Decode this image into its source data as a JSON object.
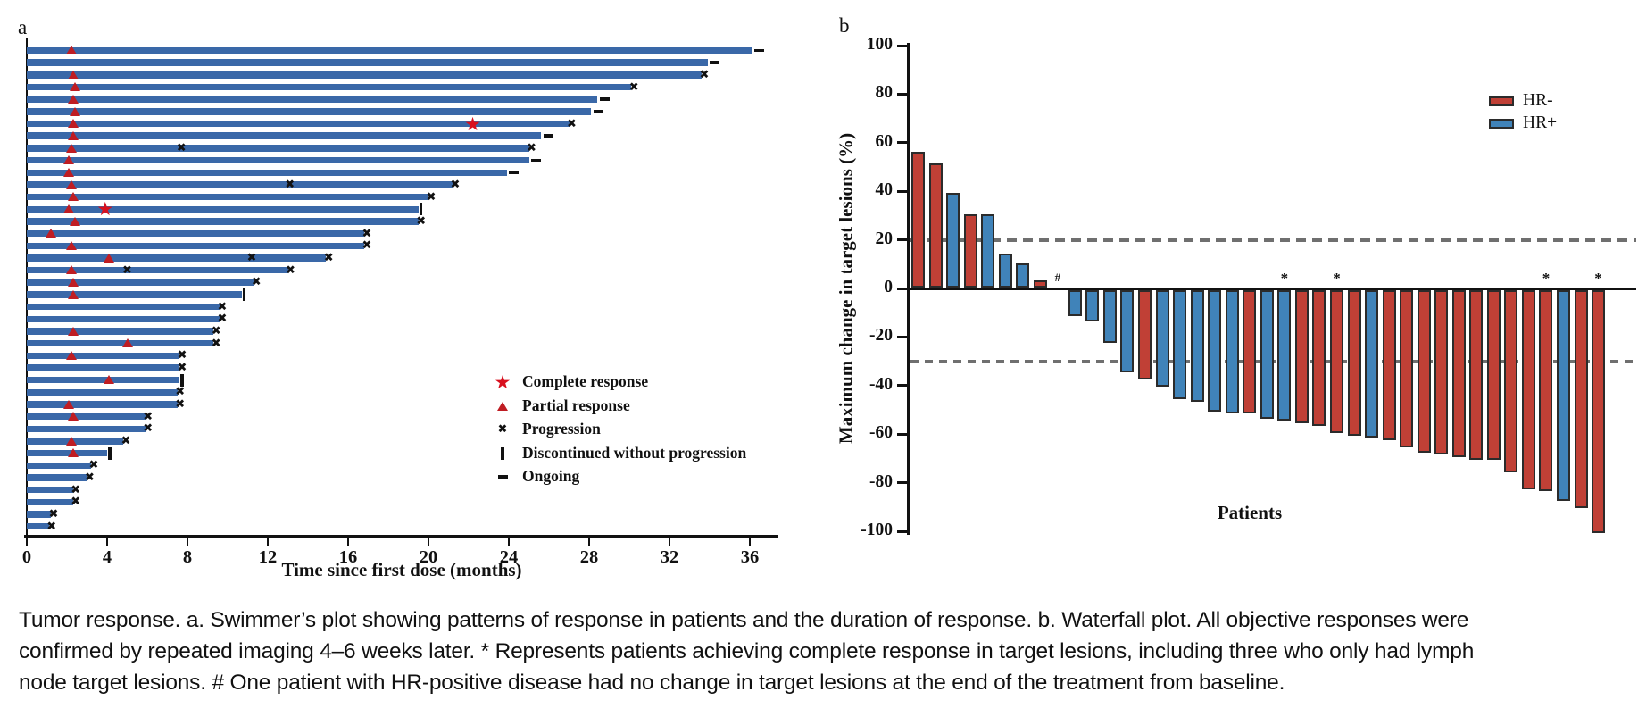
{
  "figure": {
    "panel_a_letter": "a",
    "panel_b_letter": "b"
  },
  "colors": {
    "swimmer_bar": "#3a68a8",
    "partial_response_triangle": "#bf1d23",
    "complete_response_star": "#d8101e",
    "progression_x": "#111111",
    "waterfall_hr_neg": "#c04036",
    "waterfall_hr_pos": "#4083b9",
    "waterfall_bar_border": "#2b2b2b",
    "reference_dash_gray": "#6f6f6f"
  },
  "caption": {
    "lines": [
      "Tumor response. a. Swimmer’s plot showing patterns of response in patients and the duration of response. b. Waterfall plot. All objective responses were",
      "confirmed by repeated imaging 4–6 weeks later. * Represents patients achieving complete response in target lesions, including three who only had lymph",
      "node target lesions. # One patient with HR-positive disease had no change in target lesions at the end of the treatment from baseline."
    ]
  },
  "chart_data": [
    {
      "id": "swimmer-plot",
      "type": "bar",
      "orientation": "horizontal",
      "xlabel": "Time since first dose (months)",
      "x_ticks": [
        0,
        4,
        8,
        12,
        16,
        20,
        24,
        28,
        32,
        36
      ],
      "xlim": [
        0,
        37.5
      ],
      "grid": false,
      "legend_position": "lower-right-inside",
      "legend": [
        {
          "symbol": "star",
          "label": "Complete response"
        },
        {
          "symbol": "triangle",
          "label": "Partial response"
        },
        {
          "symbol": "x",
          "label": "Progression"
        },
        {
          "symbol": "vbar",
          "label": "Discontinued without progression"
        },
        {
          "symbol": "dash",
          "label": "Ongoing"
        }
      ],
      "patients": [
        {
          "duration_months": 36.1,
          "end": "ongoing",
          "partial_response_at": [
            2.2
          ],
          "complete_response_at": [],
          "progression_at": []
        },
        {
          "duration_months": 33.9,
          "end": "ongoing",
          "partial_response_at": [],
          "complete_response_at": [],
          "progression_at": []
        },
        {
          "duration_months": 33.6,
          "end": "progression",
          "partial_response_at": [
            2.3
          ],
          "complete_response_at": [],
          "progression_at": []
        },
        {
          "duration_months": 30.1,
          "end": "progression",
          "partial_response_at": [
            2.4
          ],
          "complete_response_at": [],
          "progression_at": []
        },
        {
          "duration_months": 28.4,
          "end": "ongoing",
          "partial_response_at": [
            2.3
          ],
          "complete_response_at": [],
          "progression_at": []
        },
        {
          "duration_months": 28.1,
          "end": "ongoing",
          "partial_response_at": [
            2.4
          ],
          "complete_response_at": [],
          "progression_at": []
        },
        {
          "duration_months": 27.0,
          "end": "progression",
          "partial_response_at": [
            2.3
          ],
          "complete_response_at": [
            22.2
          ],
          "progression_at": []
        },
        {
          "duration_months": 25.6,
          "end": "ongoing",
          "partial_response_at": [
            2.3
          ],
          "complete_response_at": [],
          "progression_at": []
        },
        {
          "duration_months": 25.0,
          "end": "progression",
          "partial_response_at": [
            2.2
          ],
          "complete_response_at": [],
          "progression_at": [
            7.7
          ]
        },
        {
          "duration_months": 25.0,
          "end": "ongoing",
          "partial_response_at": [
            2.1
          ],
          "complete_response_at": [],
          "progression_at": []
        },
        {
          "duration_months": 23.9,
          "end": "ongoing",
          "partial_response_at": [
            2.1
          ],
          "complete_response_at": [],
          "progression_at": []
        },
        {
          "duration_months": 21.2,
          "end": "progression",
          "partial_response_at": [
            2.2
          ],
          "complete_response_at": [],
          "progression_at": [
            13.1
          ]
        },
        {
          "duration_months": 20.0,
          "end": "progression",
          "partial_response_at": [
            2.3
          ],
          "complete_response_at": [],
          "progression_at": []
        },
        {
          "duration_months": 19.5,
          "end": "discontinued",
          "partial_response_at": [
            2.1
          ],
          "complete_response_at": [
            3.9
          ],
          "progression_at": []
        },
        {
          "duration_months": 19.5,
          "end": "progression",
          "partial_response_at": [
            2.4
          ],
          "complete_response_at": [],
          "progression_at": []
        },
        {
          "duration_months": 16.8,
          "end": "progression",
          "partial_response_at": [
            1.2
          ],
          "complete_response_at": [],
          "progression_at": []
        },
        {
          "duration_months": 16.8,
          "end": "progression",
          "partial_response_at": [
            2.2
          ],
          "complete_response_at": [],
          "progression_at": []
        },
        {
          "duration_months": 14.9,
          "end": "progression",
          "partial_response_at": [
            4.1
          ],
          "complete_response_at": [],
          "progression_at": [
            11.2
          ]
        },
        {
          "duration_months": 13.0,
          "end": "progression",
          "partial_response_at": [
            2.2
          ],
          "complete_response_at": [],
          "progression_at": [
            5.0
          ]
        },
        {
          "duration_months": 11.3,
          "end": "progression",
          "partial_response_at": [
            2.3
          ],
          "complete_response_at": [],
          "progression_at": []
        },
        {
          "duration_months": 10.7,
          "end": "discontinued",
          "partial_response_at": [
            2.3
          ],
          "complete_response_at": [],
          "progression_at": []
        },
        {
          "duration_months": 9.6,
          "end": "progression",
          "partial_response_at": [],
          "complete_response_at": [],
          "progression_at": []
        },
        {
          "duration_months": 9.6,
          "end": "progression",
          "partial_response_at": [],
          "complete_response_at": [],
          "progression_at": []
        },
        {
          "duration_months": 9.3,
          "end": "progression",
          "partial_response_at": [
            2.3
          ],
          "complete_response_at": [],
          "progression_at": []
        },
        {
          "duration_months": 9.3,
          "end": "progression",
          "partial_response_at": [
            5.0
          ],
          "complete_response_at": [],
          "progression_at": []
        },
        {
          "duration_months": 7.6,
          "end": "progression",
          "partial_response_at": [
            2.2
          ],
          "complete_response_at": [],
          "progression_at": []
        },
        {
          "duration_months": 7.6,
          "end": "progression",
          "partial_response_at": [],
          "complete_response_at": [],
          "progression_at": []
        },
        {
          "duration_months": 7.6,
          "end": "discontinued",
          "partial_response_at": [
            4.1
          ],
          "complete_response_at": [],
          "progression_at": []
        },
        {
          "duration_months": 7.5,
          "end": "progression",
          "partial_response_at": [],
          "complete_response_at": [],
          "progression_at": []
        },
        {
          "duration_months": 7.5,
          "end": "progression",
          "partial_response_at": [
            2.1
          ],
          "complete_response_at": [],
          "progression_at": []
        },
        {
          "duration_months": 5.9,
          "end": "progression",
          "partial_response_at": [
            2.3
          ],
          "complete_response_at": [],
          "progression_at": []
        },
        {
          "duration_months": 5.9,
          "end": "progression",
          "partial_response_at": [],
          "complete_response_at": [],
          "progression_at": []
        },
        {
          "duration_months": 4.8,
          "end": "progression",
          "partial_response_at": [
            2.2
          ],
          "complete_response_at": [],
          "progression_at": []
        },
        {
          "duration_months": 4.0,
          "end": "discontinued",
          "partial_response_at": [
            2.3
          ],
          "complete_response_at": [],
          "progression_at": []
        },
        {
          "duration_months": 3.2,
          "end": "progression",
          "partial_response_at": [],
          "complete_response_at": [],
          "progression_at": []
        },
        {
          "duration_months": 3.0,
          "end": "progression",
          "partial_response_at": [],
          "complete_response_at": [],
          "progression_at": []
        },
        {
          "duration_months": 2.3,
          "end": "progression",
          "partial_response_at": [],
          "complete_response_at": [],
          "progression_at": []
        },
        {
          "duration_months": 2.3,
          "end": "progression",
          "partial_response_at": [],
          "complete_response_at": [],
          "progression_at": []
        },
        {
          "duration_months": 1.2,
          "end": "progression",
          "partial_response_at": [],
          "complete_response_at": [],
          "progression_at": []
        },
        {
          "duration_months": 1.1,
          "end": "progression",
          "partial_response_at": [],
          "complete_response_at": [],
          "progression_at": []
        }
      ]
    },
    {
      "id": "waterfall-plot",
      "type": "bar",
      "ylabel": "Maximum change in target lesions (%)",
      "xlabel": "Patients",
      "ylim": [
        -100,
        100
      ],
      "y_ticks": [
        100,
        80,
        60,
        40,
        20,
        0,
        -20,
        -40,
        -60,
        -80,
        -100
      ],
      "reference_lines": [
        20,
        -30
      ],
      "grid": false,
      "legend_position": "upper-right-inside",
      "legend": [
        {
          "label": "HR-",
          "color": "#c04036"
        },
        {
          "label": "HR+",
          "color": "#4083b9"
        }
      ],
      "patients": [
        {
          "value": 56,
          "group": "HR-"
        },
        {
          "value": 51,
          "group": "HR-"
        },
        {
          "value": 39,
          "group": "HR+"
        },
        {
          "value": 30,
          "group": "HR-"
        },
        {
          "value": 30,
          "group": "HR+"
        },
        {
          "value": 14,
          "group": "HR+"
        },
        {
          "value": 10,
          "group": "HR+"
        },
        {
          "value": 3,
          "group": "HR-"
        },
        {
          "value": 0,
          "group": "HR+",
          "mark": "#"
        },
        {
          "value": -11,
          "group": "HR+"
        },
        {
          "value": -13,
          "group": "HR+"
        },
        {
          "value": -22,
          "group": "HR+"
        },
        {
          "value": -34,
          "group": "HR+"
        },
        {
          "value": -37,
          "group": "HR-"
        },
        {
          "value": -40,
          "group": "HR+"
        },
        {
          "value": -45,
          "group": "HR+"
        },
        {
          "value": -46,
          "group": "HR+"
        },
        {
          "value": -50,
          "group": "HR+"
        },
        {
          "value": -51,
          "group": "HR+"
        },
        {
          "value": -51,
          "group": "HR-"
        },
        {
          "value": -53,
          "group": "HR+"
        },
        {
          "value": -54,
          "group": "HR+",
          "mark": "*"
        },
        {
          "value": -55,
          "group": "HR-"
        },
        {
          "value": -56,
          "group": "HR-"
        },
        {
          "value": -59,
          "group": "HR-",
          "mark": "*"
        },
        {
          "value": -60,
          "group": "HR-"
        },
        {
          "value": -61,
          "group": "HR+"
        },
        {
          "value": -62,
          "group": "HR-"
        },
        {
          "value": -65,
          "group": "HR-"
        },
        {
          "value": -67,
          "group": "HR-"
        },
        {
          "value": -68,
          "group": "HR-"
        },
        {
          "value": -69,
          "group": "HR-"
        },
        {
          "value": -70,
          "group": "HR-"
        },
        {
          "value": -70,
          "group": "HR-"
        },
        {
          "value": -75,
          "group": "HR-"
        },
        {
          "value": -82,
          "group": "HR-"
        },
        {
          "value": -83,
          "group": "HR-",
          "mark": "*"
        },
        {
          "value": -87,
          "group": "HR+"
        },
        {
          "value": -90,
          "group": "HR-"
        },
        {
          "value": -100,
          "group": "HR-",
          "mark": "*"
        }
      ]
    }
  ]
}
